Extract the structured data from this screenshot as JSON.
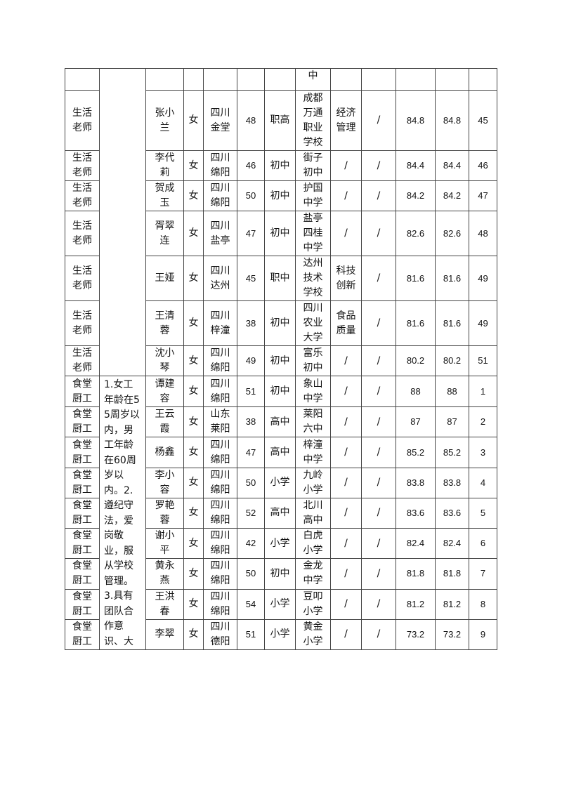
{
  "requirements": "1.女工年龄在55周岁以内，男工年龄在60周岁以内。2.遵纪守法，爱岗敬业，服从学校管理。3.具有团队合作意识、大",
  "top_row": {
    "school": "中"
  },
  "rows": [
    {
      "role": "生活老师",
      "name": "张小兰",
      "gender": "女",
      "origin": "四川金堂",
      "age": "48",
      "edu": "职高",
      "school": "成都万通职业学校",
      "major": "经济管理",
      "other": "/",
      "score1": "84.8",
      "score2": "84.8",
      "rank": "45"
    },
    {
      "role": "生活老师",
      "name": "李代莉",
      "gender": "女",
      "origin": "四川绵阳",
      "age": "46",
      "edu": "初中",
      "school": "街子初中",
      "major": "/",
      "other": "/",
      "score1": "84.4",
      "score2": "84.4",
      "rank": "46"
    },
    {
      "role": "生活老师",
      "name": "贺成玉",
      "gender": "女",
      "origin": "四川绵阳",
      "age": "50",
      "edu": "初中",
      "school": "护国中学",
      "major": "/",
      "other": "/",
      "score1": "84.2",
      "score2": "84.2",
      "rank": "47"
    },
    {
      "role": "生活老师",
      "name": "胥翠连",
      "gender": "女",
      "origin": "四川盐亭",
      "age": "47",
      "edu": "初中",
      "school": "盐亭四桂中学",
      "major": "/",
      "other": "/",
      "score1": "82.6",
      "score2": "82.6",
      "rank": "48"
    },
    {
      "role": "生活老师",
      "name": "王娅",
      "gender": "女",
      "origin": "四川达州",
      "age": "45",
      "edu": "职中",
      "school": "达州技术学校",
      "major": "科技创新",
      "other": "/",
      "score1": "81.6",
      "score2": "81.6",
      "rank": "49"
    },
    {
      "role": "生活老师",
      "name": "王清蓉",
      "gender": "女",
      "origin": "四川梓潼",
      "age": "38",
      "edu": "初中",
      "school": "四川农业大学",
      "major": "食品质量",
      "other": "/",
      "score1": "81.6",
      "score2": "81.6",
      "rank": "49"
    },
    {
      "role": "生活老师",
      "name": "沈小琴",
      "gender": "女",
      "origin": "四川绵阳",
      "age": "49",
      "edu": "初中",
      "school": "富乐初中",
      "major": "/",
      "other": "/",
      "score1": "80.2",
      "score2": "80.2",
      "rank": "51"
    },
    {
      "role": "食堂厨工",
      "name": "谭建容",
      "gender": "女",
      "origin": "四川绵阳",
      "age": "51",
      "edu": "初中",
      "school": "象山中学",
      "major": "/",
      "other": "/",
      "score1": "88",
      "score2": "88",
      "rank": "1"
    },
    {
      "role": "食堂厨工",
      "name": "王云霞",
      "gender": "女",
      "origin": "山东莱阳",
      "age": "38",
      "edu": "高中",
      "school": "莱阳六中",
      "major": "/",
      "other": "/",
      "score1": "87",
      "score2": "87",
      "rank": "2"
    },
    {
      "role": "食堂厨工",
      "name": "杨鑫",
      "gender": "女",
      "origin": "四川绵阳",
      "age": "47",
      "edu": "高中",
      "school": "梓潼中学",
      "major": "/",
      "other": "/",
      "score1": "85.2",
      "score2": "85.2",
      "rank": "3"
    },
    {
      "role": "食堂厨工",
      "name": "李小容",
      "gender": "女",
      "origin": "四川绵阳",
      "age": "50",
      "edu": "小学",
      "school": "九岭小学",
      "major": "/",
      "other": "/",
      "score1": "83.8",
      "score2": "83.8",
      "rank": "4"
    },
    {
      "role": "食堂厨工",
      "name": "罗艳蓉",
      "gender": "女",
      "origin": "四川绵阳",
      "age": "52",
      "edu": "高中",
      "school": "北川高中",
      "major": "/",
      "other": "/",
      "score1": "83.6",
      "score2": "83.6",
      "rank": "5"
    },
    {
      "role": "食堂厨工",
      "name": "谢小平",
      "gender": "女",
      "origin": "四川绵阳",
      "age": "42",
      "edu": "小学",
      "school": "白虎小学",
      "major": "/",
      "other": "/",
      "score1": "82.4",
      "score2": "82.4",
      "rank": "6"
    },
    {
      "role": "食堂厨工",
      "name": "黄永燕",
      "gender": "女",
      "origin": "四川绵阳",
      "age": "50",
      "edu": "初中",
      "school": "金龙中学",
      "major": "/",
      "other": "/",
      "score1": "81.8",
      "score2": "81.8",
      "rank": "7"
    },
    {
      "role": "食堂厨工",
      "name": "王洪春",
      "gender": "女",
      "origin": "四川绵阳",
      "age": "54",
      "edu": "小学",
      "school": "豆叩小学",
      "major": "/",
      "other": "/",
      "score1": "81.2",
      "score2": "81.2",
      "rank": "8"
    },
    {
      "role": "食堂厨工",
      "name": "李翠",
      "gender": "女",
      "origin": "四川德阳",
      "age": "51",
      "edu": "小学",
      "school": "黄金小学",
      "major": "/",
      "other": "/",
      "score1": "73.2",
      "score2": "73.2",
      "rank": "9"
    }
  ]
}
